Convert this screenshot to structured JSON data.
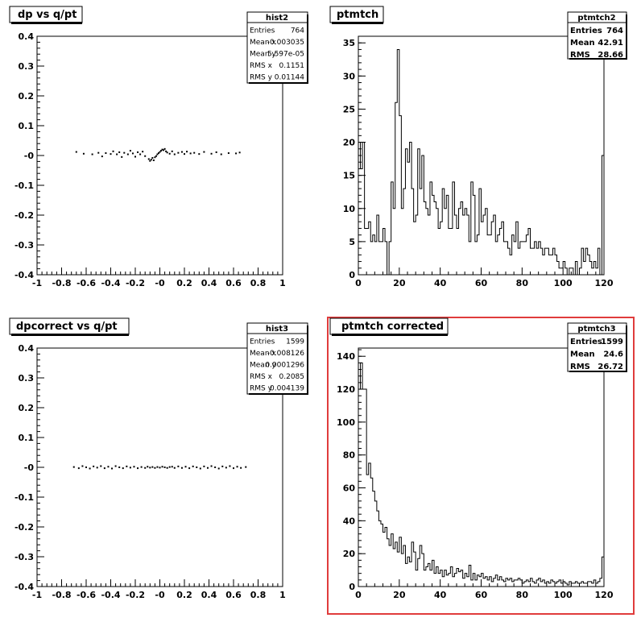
{
  "chart_data": [
    {
      "type": "scatter",
      "title": "dp vs q/pt",
      "xlim": [
        -1,
        1
      ],
      "ylim": [
        -0.4,
        0.4
      ],
      "xticks": [
        "-1",
        "-0.8",
        "-0.6",
        "-0.4",
        "-0.2",
        "-0",
        "0.2",
        "0.4",
        "0.6",
        "0.8",
        "1"
      ],
      "yticks": [
        "0.4",
        "0.3",
        "0.2",
        "0.1",
        "-0",
        "-0.1",
        "-0.2",
        "-0.3",
        "-0.4"
      ],
      "points": [
        [
          -0.68,
          0.012
        ],
        [
          -0.62,
          0.006
        ],
        [
          -0.55,
          0.004
        ],
        [
          -0.5,
          0.009
        ],
        [
          -0.47,
          -0.003
        ],
        [
          -0.44,
          0.008
        ],
        [
          -0.4,
          0.005
        ],
        [
          -0.38,
          0.014
        ],
        [
          -0.35,
          0.004
        ],
        [
          -0.33,
          0.011
        ],
        [
          -0.31,
          -0.005
        ],
        [
          -0.29,
          0.009
        ],
        [
          -0.26,
          0.004
        ],
        [
          -0.24,
          0.016
        ],
        [
          -0.22,
          0.007
        ],
        [
          -0.2,
          -0.004
        ],
        [
          -0.18,
          0.011
        ],
        [
          -0.16,
          0.004
        ],
        [
          -0.14,
          0.013
        ],
        [
          -0.12,
          -0.002
        ],
        [
          -0.09,
          -0.012
        ],
        [
          -0.08,
          -0.018
        ],
        [
          -0.07,
          -0.014
        ],
        [
          -0.06,
          -0.008
        ],
        [
          -0.05,
          -0.016
        ],
        [
          -0.04,
          -0.006
        ],
        [
          -0.03,
          -0.002
        ],
        [
          -0.02,
          0.004
        ],
        [
          -0.01,
          0.008
        ],
        [
          0.0,
          0.012
        ],
        [
          0.01,
          0.016
        ],
        [
          0.02,
          0.02
        ],
        [
          0.03,
          0.018
        ],
        [
          0.04,
          0.022
        ],
        [
          0.05,
          0.014
        ],
        [
          0.06,
          0.01
        ],
        [
          0.08,
          0.006
        ],
        [
          0.1,
          0.014
        ],
        [
          0.12,
          0.004
        ],
        [
          0.15,
          0.009
        ],
        [
          0.18,
          0.012
        ],
        [
          0.2,
          0.005
        ],
        [
          0.22,
          0.013
        ],
        [
          0.25,
          0.007
        ],
        [
          0.28,
          0.009
        ],
        [
          0.32,
          0.005
        ],
        [
          0.36,
          0.012
        ],
        [
          0.42,
          0.006
        ],
        [
          0.46,
          0.011
        ],
        [
          0.5,
          0.004
        ],
        [
          0.56,
          0.008
        ],
        [
          0.62,
          0.007
        ],
        [
          0.65,
          0.01
        ]
      ],
      "stats": {
        "name": "hist2",
        "rows": [
          [
            "Entries",
            "764"
          ],
          [
            "Mean x",
            "-0.003035"
          ],
          [
            "Mean y",
            "5.597e-05"
          ],
          [
            "RMS x",
            "0.1151"
          ],
          [
            "RMS y",
            "0.01144"
          ]
        ]
      }
    },
    {
      "type": "bar",
      "title": "ptmtch",
      "xlim": [
        0,
        120
      ],
      "ylim": [
        0,
        36
      ],
      "xticks": [
        "0",
        "20",
        "40",
        "60",
        "80",
        "100",
        "120"
      ],
      "yticks": [
        "35",
        "30",
        "25",
        "20",
        "15",
        "10",
        "5",
        "0"
      ],
      "values": [
        20,
        16,
        20,
        7,
        7,
        8,
        5,
        6,
        5,
        9,
        5,
        5,
        7,
        5,
        0,
        5,
        14,
        10,
        26,
        34,
        24,
        10,
        13,
        19,
        17,
        20,
        13,
        8,
        9,
        19,
        13,
        18,
        11,
        10,
        9,
        14,
        12,
        11,
        10,
        7,
        8,
        13,
        10,
        12,
        7,
        7,
        14,
        9,
        7,
        10,
        11,
        9,
        10,
        9,
        5,
        14,
        12,
        5,
        6,
        13,
        8,
        9,
        10,
        6,
        6,
        8,
        9,
        5,
        6,
        7,
        8,
        5,
        5,
        4,
        3,
        6,
        5,
        8,
        4,
        5,
        5,
        5,
        6,
        7,
        4,
        4,
        5,
        4,
        5,
        4,
        3,
        4,
        4,
        3,
        3,
        4,
        3,
        2,
        1,
        1,
        2,
        1,
        0,
        1,
        1,
        0,
        2,
        0,
        1,
        4,
        2,
        4,
        3,
        2,
        1,
        2,
        1,
        4,
        0,
        18
      ],
      "stats": {
        "name": "ptmtch2",
        "rows": [
          [
            "Entries",
            "764"
          ],
          [
            "Mean",
            "42.91"
          ],
          [
            "RMS",
            "28.66"
          ]
        ]
      }
    },
    {
      "type": "scatter",
      "title": "dpcorrect vs q/pt",
      "xlim": [
        -1,
        1
      ],
      "ylim": [
        -0.4,
        0.4
      ],
      "xticks": [
        "-1",
        "-0.8",
        "-0.6",
        "-0.4",
        "-0.2",
        "-0",
        "0.2",
        "0.4",
        "0.6",
        "0.8",
        "1"
      ],
      "yticks": [
        "0.4",
        "0.3",
        "0.2",
        "0.1",
        "-0",
        "-0.1",
        "-0.2",
        "-0.3",
        "-0.4"
      ],
      "points": [
        [
          -0.7,
          0.001
        ],
        [
          -0.66,
          -0.003
        ],
        [
          -0.63,
          0.004
        ],
        [
          -0.6,
          0.0
        ],
        [
          -0.57,
          -0.004
        ],
        [
          -0.54,
          0.003
        ],
        [
          -0.51,
          -0.001
        ],
        [
          -0.48,
          0.004
        ],
        [
          -0.45,
          -0.003
        ],
        [
          -0.42,
          0.002
        ],
        [
          -0.39,
          -0.004
        ],
        [
          -0.36,
          0.004
        ],
        [
          -0.33,
          0.0
        ],
        [
          -0.3,
          -0.003
        ],
        [
          -0.27,
          0.003
        ],
        [
          -0.24,
          -0.001
        ],
        [
          -0.21,
          0.002
        ],
        [
          -0.18,
          -0.003
        ],
        [
          -0.15,
          0.001
        ],
        [
          -0.12,
          -0.002
        ],
        [
          -0.1,
          0.002
        ],
        [
          -0.08,
          -0.001
        ],
        [
          -0.06,
          0.001
        ],
        [
          -0.04,
          -0.002
        ],
        [
          -0.02,
          0.001
        ],
        [
          0.0,
          -0.001
        ],
        [
          0.02,
          0.002
        ],
        [
          0.04,
          0.0
        ],
        [
          0.06,
          -0.002
        ],
        [
          0.08,
          0.001
        ],
        [
          0.1,
          0.002
        ],
        [
          0.12,
          -0.002
        ],
        [
          0.15,
          0.003
        ],
        [
          0.18,
          -0.002
        ],
        [
          0.21,
          0.002
        ],
        [
          0.24,
          -0.003
        ],
        [
          0.27,
          0.003
        ],
        [
          0.3,
          0.0
        ],
        [
          0.33,
          -0.004
        ],
        [
          0.36,
          0.003
        ],
        [
          0.39,
          -0.002
        ],
        [
          0.42,
          0.004
        ],
        [
          0.45,
          0.0
        ],
        [
          0.48,
          -0.004
        ],
        [
          0.51,
          0.003
        ],
        [
          0.54,
          -0.001
        ],
        [
          0.57,
          0.004
        ],
        [
          0.6,
          -0.003
        ],
        [
          0.63,
          0.002
        ],
        [
          0.66,
          -0.002
        ],
        [
          0.7,
          0.001
        ]
      ],
      "stats": {
        "name": "hist3",
        "rows": [
          [
            "Entries",
            "1599"
          ],
          [
            "Mean x",
            "-0.008126"
          ],
          [
            "Mean y",
            "0.0001296"
          ],
          [
            "RMS x",
            "0.2085"
          ],
          [
            "RMS y",
            "0.004139"
          ]
        ]
      }
    },
    {
      "type": "bar",
      "title": "ptmtch corrected",
      "xlim": [
        0,
        120
      ],
      "ylim": [
        0,
        145
      ],
      "xticks": [
        "0",
        "20",
        "40",
        "60",
        "80",
        "100",
        "120"
      ],
      "yticks": [
        "140",
        "120",
        "100",
        "80",
        "60",
        "40",
        "20",
        "0"
      ],
      "values": [
        120,
        136,
        120,
        120,
        68,
        75,
        66,
        58,
        52,
        46,
        40,
        38,
        33,
        36,
        29,
        25,
        32,
        23,
        27,
        21,
        30,
        20,
        25,
        14,
        18,
        15,
        27,
        21,
        10,
        17,
        25,
        20,
        10,
        12,
        14,
        10,
        16,
        8,
        12,
        8,
        10,
        6,
        10,
        7,
        8,
        12,
        6,
        8,
        11,
        9,
        10,
        5,
        8,
        6,
        13,
        4,
        8,
        4,
        7,
        6,
        8,
        5,
        6,
        4,
        6,
        3,
        5,
        7,
        4,
        6,
        4,
        3,
        5,
        4,
        5,
        3,
        4,
        4,
        5,
        4,
        2,
        3,
        4,
        3,
        5,
        3,
        2,
        4,
        5,
        3,
        4,
        2,
        3,
        2,
        4,
        3,
        2,
        3,
        4,
        2,
        3,
        2,
        1,
        3,
        2,
        2,
        3,
        2,
        2,
        3,
        2,
        2,
        3,
        3,
        2,
        4,
        2,
        3,
        5,
        18
      ],
      "stats": {
        "name": "ptmtch3",
        "rows": [
          [
            "Entries",
            "1599"
          ],
          [
            "Mean",
            "24.6"
          ],
          [
            "RMS",
            "26.72"
          ]
        ]
      }
    }
  ],
  "selected_pad_border_color": "#e03c3c"
}
